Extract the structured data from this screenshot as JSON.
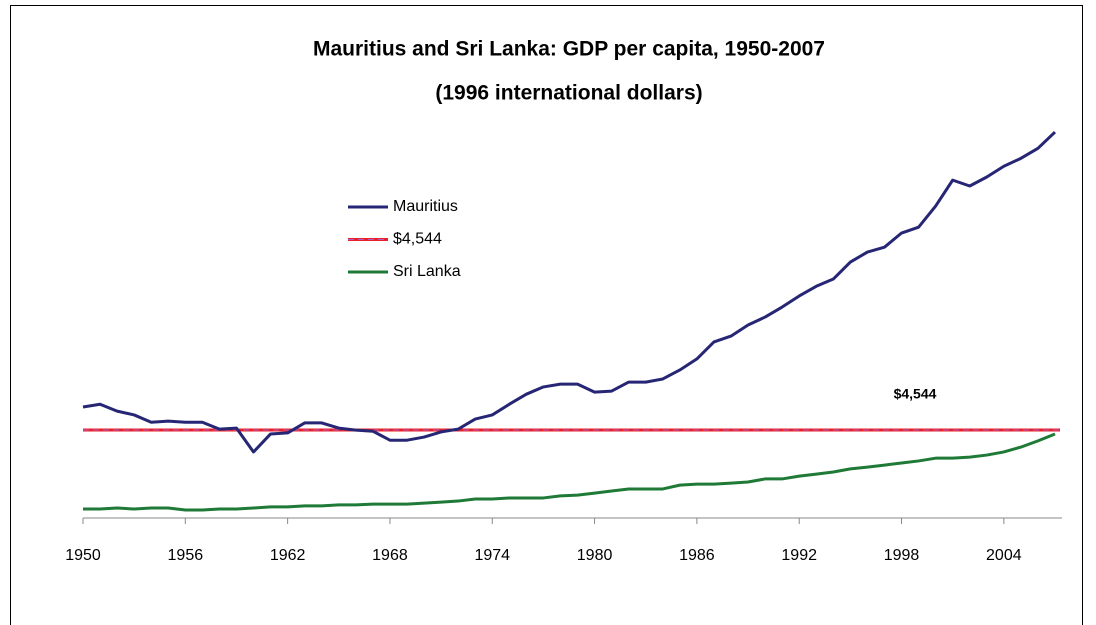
{
  "chart_data": {
    "type": "line",
    "title": "Mauritius and Sri Lanka: GDP per capita, 1950-2007",
    "subtitle": "(1996 international dollars)",
    "x": [
      1950,
      1951,
      1952,
      1953,
      1954,
      1955,
      1956,
      1957,
      1958,
      1959,
      1960,
      1961,
      1962,
      1963,
      1964,
      1965,
      1966,
      1967,
      1968,
      1969,
      1970,
      1971,
      1972,
      1973,
      1974,
      1975,
      1976,
      1977,
      1978,
      1979,
      1980,
      1981,
      1982,
      1983,
      1984,
      1985,
      1986,
      1987,
      1988,
      1989,
      1990,
      1991,
      1992,
      1993,
      1994,
      1995,
      1996,
      1997,
      1998,
      1999,
      2000,
      2001,
      2002,
      2003,
      2004,
      2005,
      2006,
      2007
    ],
    "series": [
      {
        "name": "Mauritius",
        "color": "#262675",
        "values": [
          5210,
          5290,
          5090,
          4980,
          4770,
          4800,
          4770,
          4770,
          4570,
          4600,
          3910,
          4430,
          4460,
          4750,
          4750,
          4600,
          4540,
          4510,
          4250,
          4250,
          4340,
          4490,
          4570,
          4860,
          4980,
          5290,
          5580,
          5790,
          5870,
          5870,
          5640,
          5670,
          5930,
          5930,
          6020,
          6280,
          6600,
          7090,
          7260,
          7580,
          7810,
          8100,
          8420,
          8700,
          8910,
          9400,
          9690,
          9830,
          10240,
          10410,
          11020,
          11770,
          11600,
          11860,
          12170,
          12400,
          12690,
          13160
        ]
      },
      {
        "name": "Sri Lanka",
        "color": "#1e7a36",
        "values": [
          2260,
          2260,
          2290,
          2260,
          2290,
          2290,
          2230,
          2230,
          2260,
          2260,
          2290,
          2320,
          2320,
          2350,
          2350,
          2380,
          2380,
          2400,
          2400,
          2400,
          2430,
          2460,
          2490,
          2550,
          2550,
          2580,
          2580,
          2580,
          2640,
          2660,
          2720,
          2780,
          2840,
          2840,
          2840,
          2950,
          2980,
          2980,
          3010,
          3040,
          3130,
          3130,
          3210,
          3270,
          3330,
          3420,
          3470,
          3530,
          3590,
          3650,
          3730,
          3730,
          3760,
          3820,
          3910,
          4050,
          4230,
          4430
        ]
      }
    ],
    "reference": {
      "name": "$4,544",
      "label": "$4,544",
      "value": 4544,
      "color": "#e8202a"
    },
    "xlim": [
      1950,
      2007
    ],
    "xticks": [
      1950,
      1956,
      1962,
      1968,
      1974,
      1980,
      1986,
      1992,
      1998,
      2004
    ],
    "ylim": [
      2000,
      14000
    ]
  }
}
